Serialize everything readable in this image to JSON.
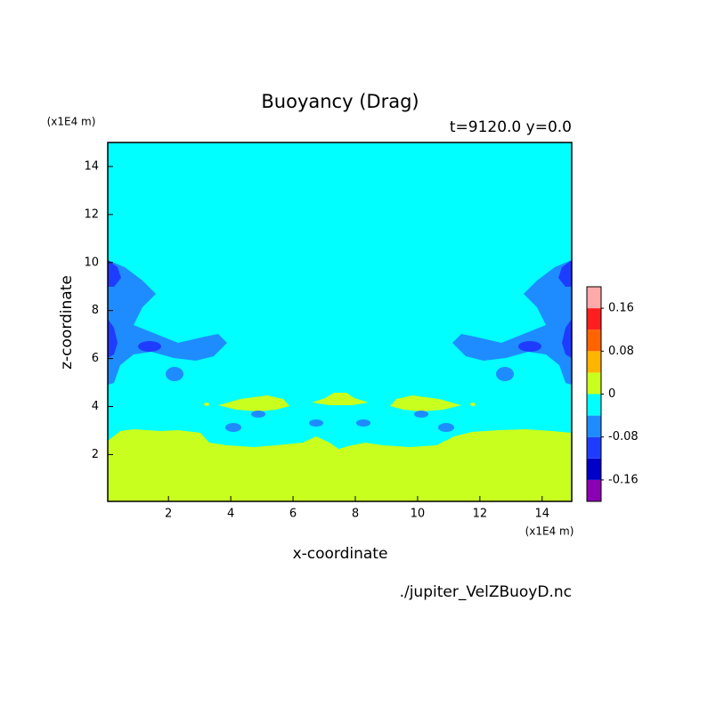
{
  "chart_data": {
    "type": "contour",
    "title": "Buoyancy (Drag)",
    "subtitle": "t=9120.0 y=0.0",
    "x_label": "x-coordinate",
    "y_label": "z-coordinate",
    "x_unit": "(x1E4 m)",
    "y_unit": "(x1E4 m)",
    "source": "./jupiter_VelZBuoyD.nc",
    "xlim": [
      0.05,
      14.95
    ],
    "ylim": [
      0.05,
      15
    ],
    "xticks": [
      2,
      4,
      6,
      8,
      10,
      12,
      14
    ],
    "yticks": [
      2,
      4,
      6,
      8,
      10,
      12,
      14
    ],
    "colorbar": {
      "levels": [
        -0.2,
        -0.16,
        -0.12,
        -0.08,
        -0.04,
        0,
        0.04,
        0.08,
        0.12,
        0.16,
        0.2
      ],
      "colors": [
        "#8c00b4",
        "#0000c8",
        "#1e3cff",
        "#1e8cff",
        "#00ffff",
        "#c8ff1e",
        "#ffb400",
        "#ff6400",
        "#ff1e1e",
        "#ffaaaa"
      ],
      "ticks": [
        -0.16,
        -0.08,
        0,
        0.08,
        0.16
      ]
    }
  }
}
